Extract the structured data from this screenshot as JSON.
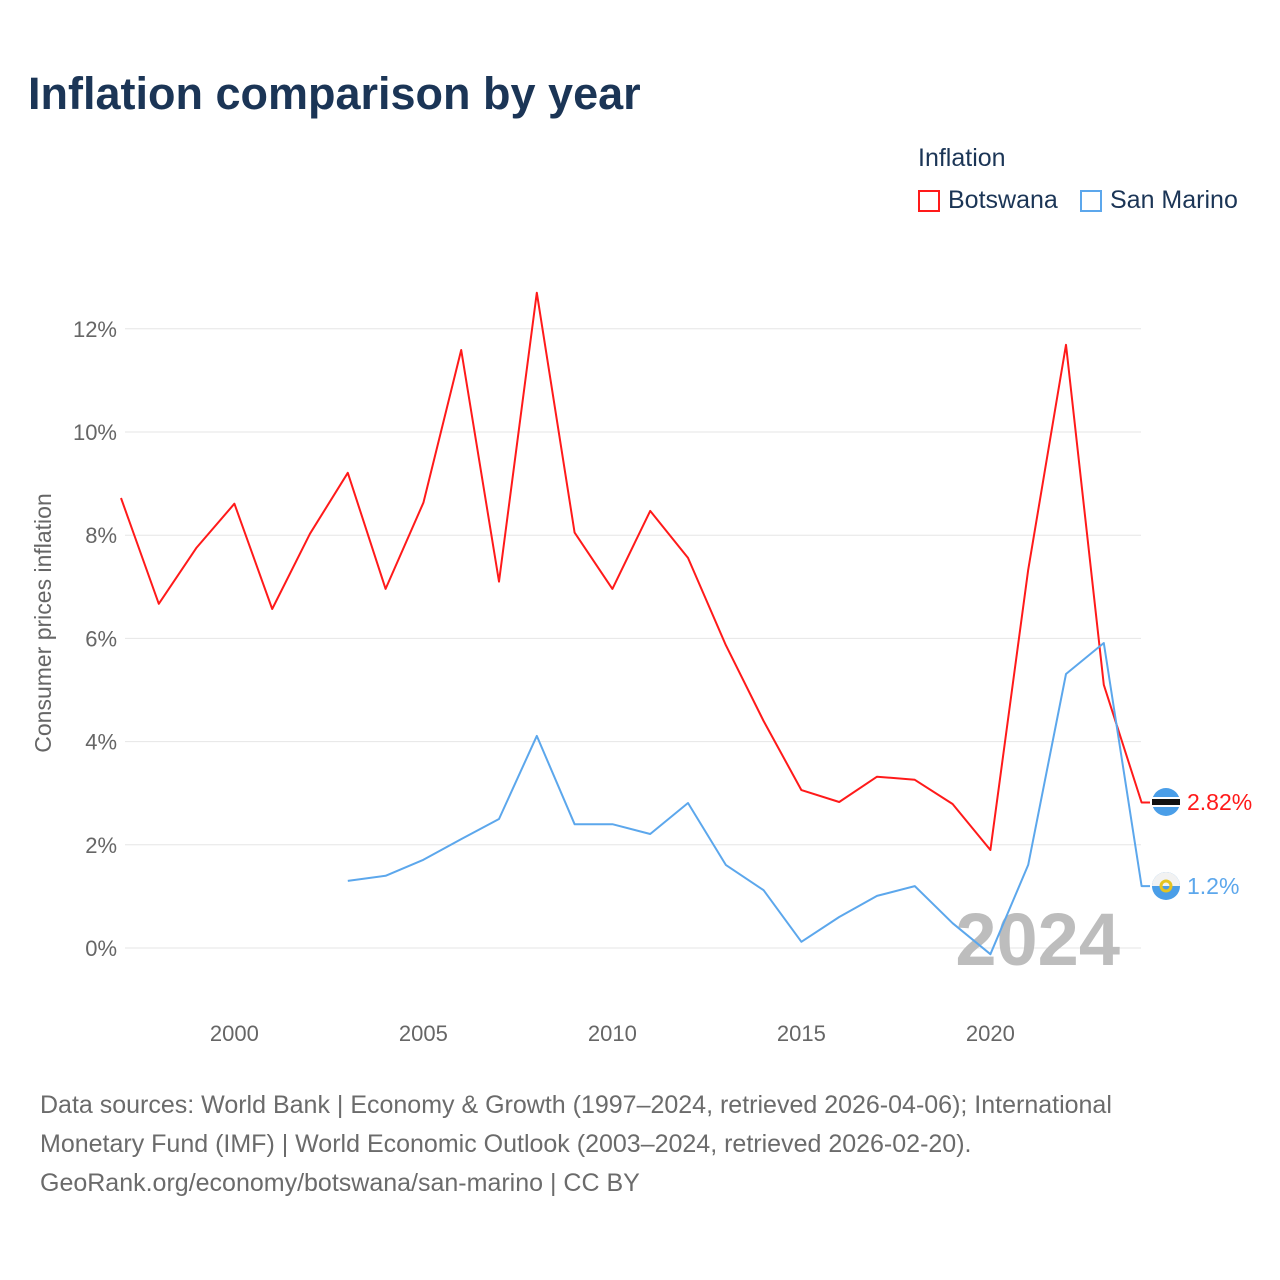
{
  "title": "Inflation comparison by year",
  "legend": {
    "title": "Inflation",
    "items": [
      {
        "name": "Botswana",
        "color": "#ff1a1a"
      },
      {
        "name": "San Marino",
        "color": "#5ca7ec"
      }
    ]
  },
  "chart_data": {
    "type": "line",
    "title": "Inflation comparison by year",
    "ylabel": "Consumer prices inflation",
    "xlabel": "",
    "xlim": [
      1997,
      2024
    ],
    "ylim": [
      -1.1,
      13.5
    ],
    "yticks": [
      0,
      2,
      4,
      6,
      8,
      10,
      12
    ],
    "ytick_labels": [
      "0%",
      "2%",
      "4%",
      "6%",
      "8%",
      "10%",
      "12%"
    ],
    "xticks": [
      2000,
      2005,
      2010,
      2015,
      2020
    ],
    "xtick_labels": [
      "2000",
      "2005",
      "2010",
      "2015",
      "2020"
    ],
    "grid": true,
    "legend_position": "top-right",
    "year_watermark": "2024",
    "series": [
      {
        "name": "Botswana",
        "color": "#ff1a1a",
        "end_label": "2.82%",
        "x": [
          1997,
          1998,
          1999,
          2000,
          2001,
          2002,
          2003,
          2004,
          2005,
          2006,
          2007,
          2008,
          2009,
          2010,
          2011,
          2012,
          2013,
          2014,
          2015,
          2016,
          2017,
          2018,
          2019,
          2020,
          2021,
          2022,
          2023,
          2024
        ],
        "values": [
          8.72,
          6.67,
          7.76,
          8.61,
          6.57,
          8.03,
          9.21,
          6.96,
          8.63,
          11.59,
          7.1,
          12.7,
          8.05,
          6.96,
          8.47,
          7.56,
          5.87,
          4.4,
          3.06,
          2.83,
          3.32,
          3.26,
          2.79,
          1.9,
          7.33,
          11.69,
          5.1,
          2.82
        ]
      },
      {
        "name": "San Marino",
        "color": "#5ca7ec",
        "end_label": "1.2%",
        "x": [
          2003,
          2004,
          2005,
          2006,
          2007,
          2008,
          2009,
          2010,
          2011,
          2012,
          2013,
          2014,
          2015,
          2016,
          2017,
          2018,
          2019,
          2020,
          2021,
          2022,
          2023,
          2024
        ],
        "values": [
          1.3,
          1.4,
          1.71,
          2.11,
          2.5,
          4.11,
          2.4,
          2.4,
          2.21,
          2.81,
          1.61,
          1.12,
          0.12,
          0.6,
          1.01,
          1.2,
          0.48,
          -0.12,
          1.61,
          5.31,
          5.91,
          1.2
        ]
      }
    ]
  },
  "source": {
    "line1": "Data sources: World Bank | Economy & Growth (1997–2024, retrieved 2026-04-06); International",
    "line2": "Monetary Fund (IMF) | World Economic Outlook (2003–2024, retrieved 2026-02-20).",
    "line3": "GeoRank.org/economy/botswana/san-marino | CC BY"
  }
}
